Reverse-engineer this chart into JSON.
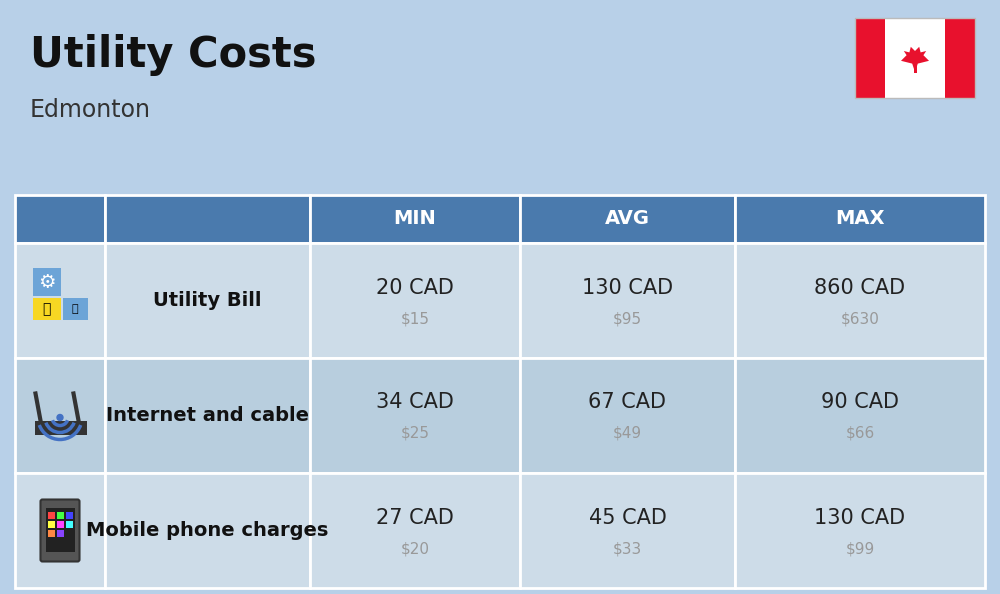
{
  "title": "Utility Costs",
  "subtitle": "Edmonton",
  "bg_color": "#b8d0e8",
  "header_bg_color": "#4a7aad",
  "header_text_color": "#ffffff",
  "row_bg_colors": [
    "#cddce8",
    "#b8cede"
  ],
  "row_label_color": "#111111",
  "value_cad_color": "#222222",
  "value_usd_color": "#999999",
  "col_headers": [
    "MIN",
    "AVG",
    "MAX"
  ],
  "rows": [
    {
      "label": "Utility Bill",
      "min_cad": "20 CAD",
      "min_usd": "$15",
      "avg_cad": "130 CAD",
      "avg_usd": "$95",
      "max_cad": "860 CAD",
      "max_usd": "$630"
    },
    {
      "label": "Internet and cable",
      "min_cad": "34 CAD",
      "min_usd": "$25",
      "avg_cad": "67 CAD",
      "avg_usd": "$49",
      "max_cad": "90 CAD",
      "max_usd": "$66"
    },
    {
      "label": "Mobile phone charges",
      "min_cad": "27 CAD",
      "min_usd": "$20",
      "avg_cad": "45 CAD",
      "avg_usd": "$33",
      "max_cad": "130 CAD",
      "max_usd": "$99"
    }
  ],
  "flag_red": "#E8112D",
  "flag_white": "#FFFFFF",
  "title_fontsize": 30,
  "subtitle_fontsize": 17,
  "header_fontsize": 14,
  "label_fontsize": 14,
  "cad_fontsize": 15,
  "usd_fontsize": 11
}
